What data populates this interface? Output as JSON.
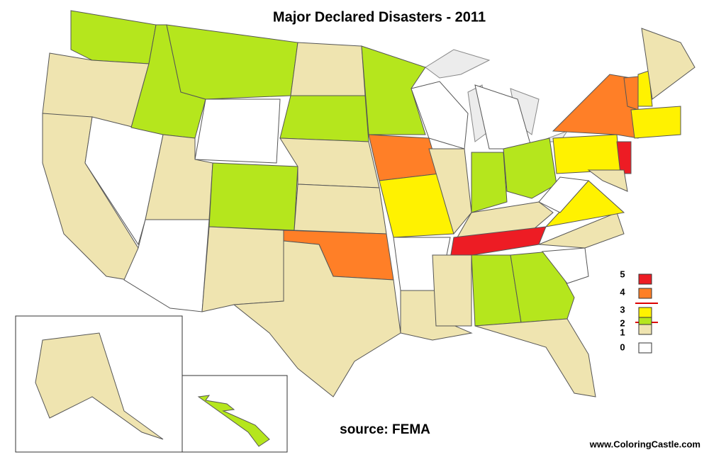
{
  "title": "Major Declared Disasters - 2011",
  "source": "source: FEMA",
  "website": "www.ColoringCastle.com",
  "legend": [
    {
      "label": 5,
      "color": "#ed1c24"
    },
    {
      "label": 4,
      "color": "#ff7f27"
    },
    {
      "label": 3,
      "color": "#fff200"
    },
    {
      "label": 2,
      "color": "#b5e61d"
    },
    {
      "label": 1,
      "color": "#efe4b0"
    },
    {
      "label": 0,
      "color": "#ffffff"
    }
  ],
  "regions": [
    2,
    1,
    1,
    0,
    2,
    2,
    0,
    1,
    0,
    2,
    1,
    1,
    2,
    1,
    1,
    4,
    1,
    2,
    4,
    3,
    0,
    1,
    0,
    1,
    0,
    2,
    2,
    1,
    5,
    1,
    2,
    2,
    1,
    0,
    1,
    3,
    0,
    3,
    4,
    5,
    1,
    4,
    3,
    1,
    3,
    1,
    2
  ]
}
